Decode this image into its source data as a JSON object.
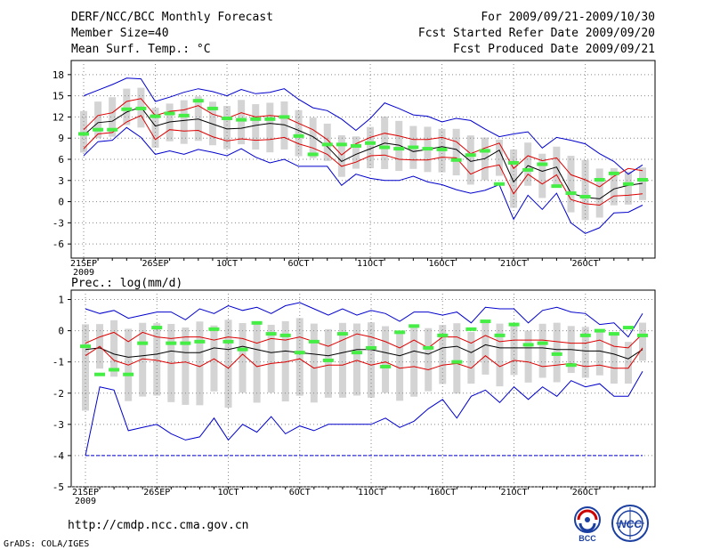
{
  "header": {
    "title": "DERF/NCC/BCC Monthly Forecast",
    "member_size": "Member Size=40",
    "variable": "Mean Surf. Temp.: °C",
    "period": "For 2009/09/21-2009/10/30",
    "fcst_started": "Fcst Started Refer Date 2009/09/20",
    "fcst_produced": "Fcst Produced Date 2009/09/21"
  },
  "footer": {
    "url": "http://cmdp.ncc.cma.gov.cn",
    "credit": "GrADS: COLA/IGES",
    "logo_bcc": "BCC",
    "logo_ncc": "NCC"
  },
  "colors": {
    "ensemble_mean": "#000000",
    "spread_1sd": "#dd0000",
    "spread_range": "#0000cc",
    "member_median": "#44ee44",
    "box": "#d4d4d4",
    "grid": "#888888"
  },
  "chart_data": [
    {
      "type": "line",
      "title": "Mean Surf. Temp.: °C",
      "x_label_ticks": [
        "21SEP",
        "26SEP",
        "1OCT",
        "6OCT",
        "11OCT",
        "16OCT",
        "21OCT",
        "26OCT"
      ],
      "x_year": "2009",
      "days": 40,
      "ylim": [
        -8,
        20
      ],
      "yticks": [
        18,
        15,
        12,
        9,
        6,
        3,
        0,
        -3,
        -6
      ],
      "series": [
        {
          "name": "max",
          "values": [
            15,
            15.8,
            16.6,
            17.5,
            17.4,
            14.2,
            14.8,
            15.5,
            16,
            15.6,
            15,
            15.9,
            15.3,
            15.5,
            16,
            14.5,
            13.3,
            12.9,
            11.7,
            10.1,
            11.8,
            14,
            13.2,
            12.3,
            12.1,
            11.3,
            11.8,
            11.5,
            10.3,
            9.2,
            9.6,
            9.9,
            7.6,
            9.1,
            8.7,
            8.2,
            6.8,
            5.7,
            3.9,
            5.2
          ]
        },
        {
          "name": "plus_sd",
          "values": [
            10.2,
            12.2,
            12.6,
            14.2,
            14.6,
            12.2,
            12.8,
            13,
            13.6,
            12.4,
            11.8,
            12.6,
            12,
            12.2,
            12,
            11.1,
            10.2,
            8.8,
            6.6,
            8.2,
            9.1,
            9.7,
            9.3,
            8.8,
            8.8,
            9.1,
            8.5,
            6.8,
            7.6,
            8.3,
            4.7,
            6.5,
            5.8,
            6.2,
            3.8,
            3.1,
            2.1,
            3.6,
            4.7,
            4.4
          ]
        },
        {
          "name": "mean",
          "values": [
            9.4,
            11.2,
            11.4,
            12.7,
            13.4,
            10.7,
            11.3,
            11.5,
            11.7,
            11,
            10.3,
            10.4,
            10.8,
            11.1,
            10.9,
            10.1,
            9.2,
            7.8,
            5.7,
            6.7,
            7.5,
            8.3,
            8,
            7.1,
            7.4,
            7.8,
            7.4,
            5.7,
            6.1,
            7.3,
            2.8,
            5.1,
            4.3,
            4.9,
            1.2,
            0.6,
            0.4,
            1.8,
            2.3,
            2.6
          ]
        },
        {
          "name": "minus_sd",
          "values": [
            7.5,
            9.6,
            9.8,
            11.3,
            12.2,
            8.8,
            10.2,
            10,
            10.1,
            9.2,
            8.6,
            8.9,
            8.7,
            8.8,
            9.1,
            8.2,
            7.6,
            6.7,
            5,
            5.6,
            6.5,
            6.6,
            6,
            5.9,
            5.9,
            6.3,
            6.2,
            3.9,
            4.8,
            5.2,
            1.1,
            3.9,
            2.5,
            3.8,
            0.3,
            -0.3,
            -0.5,
            0.8,
            0.9,
            1.1
          ]
        },
        {
          "name": "min",
          "values": [
            6.5,
            8.5,
            8.7,
            10.5,
            9.1,
            6.7,
            7.2,
            6.7,
            7.4,
            7,
            6.5,
            7.5,
            6.3,
            5.5,
            6,
            5,
            5,
            5,
            2.3,
            3.9,
            3.3,
            3,
            3,
            3.6,
            2.8,
            2.4,
            1.7,
            1.2,
            1.6,
            2.4,
            -2.5,
            0.9,
            -1.1,
            1.2,
            -3,
            -4.5,
            -3.7,
            -1.6,
            -1.5,
            -0.5
          ]
        },
        {
          "name": "median",
          "values": [
            9.6,
            10.2,
            10.2,
            13.1,
            13.2,
            12.1,
            12.5,
            12.2,
            14.3,
            13.2,
            11.8,
            11.6,
            11.7,
            11.7,
            12,
            9.3,
            6.7,
            8.1,
            8.1,
            7.9,
            8.3,
            7.7,
            7.5,
            7.7,
            7.5,
            7.4,
            5.9,
            6.6,
            7.2,
            2.5,
            5.5,
            4.5,
            5.3,
            2.2,
            1.2,
            0.7,
            3.1,
            4,
            2.5,
            3.1
          ]
        }
      ]
    },
    {
      "type": "line",
      "title": "Prec.: log(mm/d)",
      "x_label_ticks": [
        "21SEP",
        "26SEP",
        "1OCT",
        "6OCT",
        "11OCT",
        "16OCT",
        "21OCT",
        "26OCT"
      ],
      "x_year": "2009",
      "days": 40,
      "ylim": [
        -5,
        1.3
      ],
      "yticks": [
        1,
        0,
        -1,
        -2,
        -3,
        -4,
        -5
      ],
      "series": [
        {
          "name": "max",
          "values": [
            0.7,
            0.55,
            0.65,
            0.4,
            0.5,
            0.6,
            0.6,
            0.35,
            0.7,
            0.55,
            0.8,
            0.65,
            0.75,
            0.55,
            0.8,
            0.9,
            0.7,
            0.5,
            0.7,
            0.5,
            0.65,
            0.55,
            0.3,
            0.6,
            0.6,
            0.5,
            0.6,
            0.25,
            0.75,
            0.7,
            0.7,
            0.25,
            0.65,
            0.75,
            0.6,
            0.55,
            0.2,
            0.25,
            -0.2,
            0.55
          ]
        },
        {
          "name": "plus_sd",
          "values": [
            -0.4,
            -0.2,
            -0.05,
            -0.35,
            -0.05,
            -0.2,
            -0.25,
            -0.2,
            -0.2,
            -0.3,
            -0.2,
            -0.25,
            -0.4,
            -0.25,
            -0.3,
            -0.2,
            -0.35,
            -0.5,
            -0.3,
            -0.1,
            -0.2,
            -0.35,
            -0.55,
            -0.3,
            -0.55,
            -0.2,
            -0.2,
            -0.4,
            -0.15,
            -0.35,
            -0.3,
            -0.3,
            -0.3,
            -0.35,
            -0.4,
            -0.4,
            -0.3,
            -0.5,
            -0.55,
            -0.1
          ]
        },
        {
          "name": "mean",
          "values": [
            -0.6,
            -0.55,
            -0.75,
            -0.85,
            -0.8,
            -0.75,
            -0.65,
            -0.7,
            -0.7,
            -0.55,
            -0.6,
            -0.5,
            -0.6,
            -0.7,
            -0.65,
            -0.7,
            -0.75,
            -0.8,
            -0.7,
            -0.6,
            -0.6,
            -0.7,
            -0.8,
            -0.65,
            -0.75,
            -0.55,
            -0.5,
            -0.7,
            -0.45,
            -0.55,
            -0.55,
            -0.55,
            -0.55,
            -0.6,
            -0.6,
            -0.65,
            -0.65,
            -0.75,
            -0.9,
            -0.6
          ]
        },
        {
          "name": "minus_sd",
          "values": [
            -0.8,
            -0.5,
            -0.95,
            -1.1,
            -0.9,
            -0.95,
            -1.05,
            -1,
            -1.15,
            -0.9,
            -1.2,
            -0.75,
            -1.15,
            -1.05,
            -1,
            -0.9,
            -1.2,
            -1.1,
            -1.1,
            -0.95,
            -1.1,
            -1,
            -1.2,
            -1.15,
            -1.25,
            -1.1,
            -1.05,
            -1.2,
            -0.8,
            -1.15,
            -0.95,
            -1,
            -1.15,
            -1.1,
            -1.05,
            -1.15,
            -1.1,
            -1.2,
            -1.2,
            -0.55
          ]
        },
        {
          "name": "min",
          "values": [
            -4,
            -1.8,
            -1.9,
            -3.2,
            -3.1,
            -3,
            -3.3,
            -3.5,
            -3.4,
            -2.8,
            -3.5,
            -3,
            -3.25,
            -2.75,
            -3.3,
            -3.05,
            -3.2,
            -3,
            -3,
            -3,
            -3,
            -2.8,
            -3.1,
            -2.9,
            -2.5,
            -2.2,
            -2.8,
            -2.1,
            -1.9,
            -2.3,
            -1.8,
            -2.2,
            -1.8,
            -2.1,
            -1.6,
            -1.8,
            -1.7,
            -2.1,
            -2.1,
            -1.3
          ]
        },
        {
          "name": "median",
          "values": [
            -0.5,
            -1.4,
            -1.25,
            -1.4,
            -0.4,
            0.1,
            -0.4,
            -0.4,
            -0.35,
            0.05,
            -0.35,
            -0.6,
            0.25,
            -0.1,
            -0.15,
            -0.7,
            -0.35,
            -0.95,
            -0.1,
            -0.7,
            -0.55,
            -1.15,
            -0.05,
            0.15,
            -0.55,
            -0.15,
            -1,
            0.05,
            0.3,
            -0.15,
            0.2,
            -0.45,
            -0.4,
            -0.75,
            -1.1,
            -0.15,
            0,
            -0.1,
            0.1,
            -0.15
          ]
        },
        {
          "name": "floor",
          "values": [
            -4,
            -4,
            -4,
            -4,
            -4,
            -4,
            -4,
            -4,
            -4,
            -4,
            -4,
            -4,
            -4,
            -4,
            -4,
            -4,
            -4,
            -4,
            -4,
            -4,
            -4,
            -4,
            -4,
            -4,
            -4,
            -4,
            -4,
            -4,
            -4,
            -4,
            -4,
            -4,
            -4,
            -4,
            -4,
            -4,
            -4,
            -4,
            -4,
            -4
          ]
        }
      ]
    }
  ]
}
